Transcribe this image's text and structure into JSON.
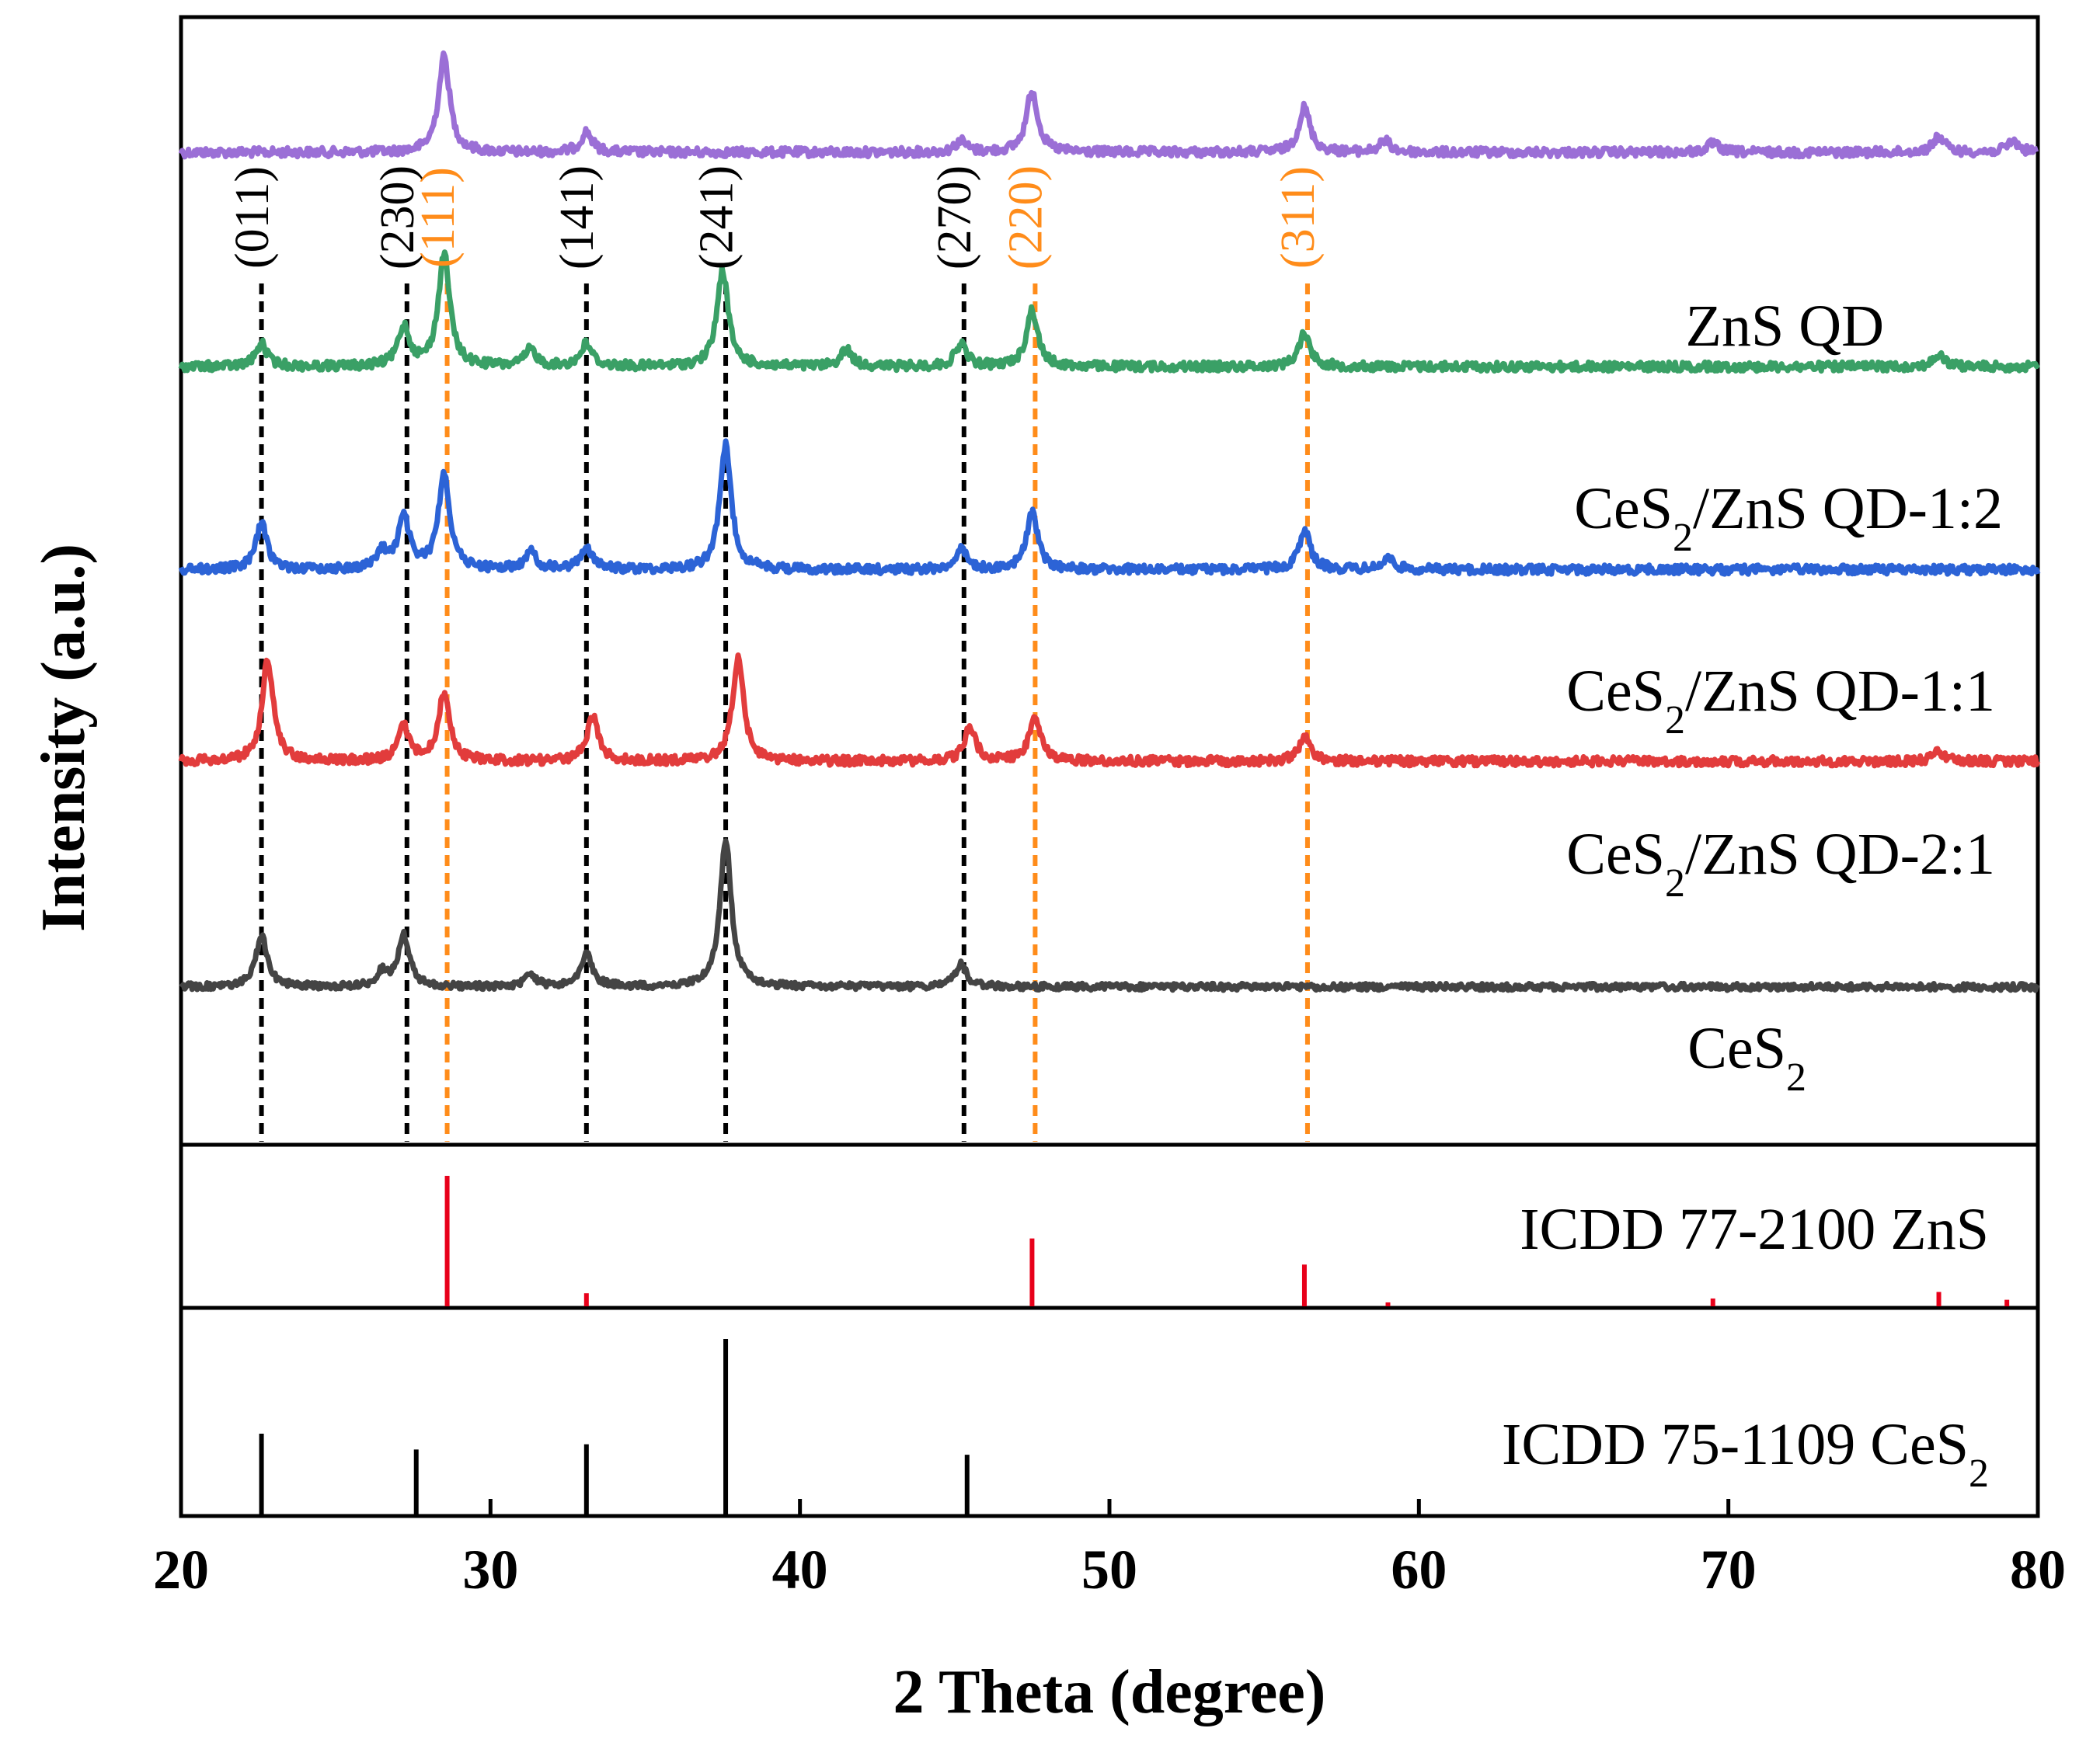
{
  "chart_data": {
    "type": "line",
    "title": "",
    "xlabel": "2 Theta (degree)",
    "ylabel": "Intensity (a.u.)",
    "xlim": [
      20,
      80
    ],
    "x_ticks": [
      "20",
      "30",
      "40",
      "50",
      "60",
      "70",
      "80"
    ],
    "grid": false,
    "series": [
      {
        "name": "ZnS QD",
        "name_main": "ZnS QD",
        "name_sub": "",
        "name_tail": "",
        "color": "#9b6fd6",
        "baseline_au": 0.12,
        "noise_au": 0.004,
        "peaks": [
          [
            28.5,
            0.085
          ],
          [
            33.1,
            0.018
          ],
          [
            45.2,
            0.01
          ],
          [
            47.5,
            0.055
          ],
          [
            56.3,
            0.04
          ],
          [
            58.9,
            0.01
          ],
          [
            69.5,
            0.008
          ],
          [
            76.8,
            0.014
          ],
          [
            79.2,
            0.01
          ]
        ]
      },
      {
        "name": "CeS2/ZnS QD-1:2",
        "name_main": "CeS",
        "name_sub": "2",
        "name_tail": "/ZnS QD-1:2",
        "color": "#3aa066",
        "baseline_au": 0.31,
        "noise_au": 0.004,
        "peaks": [
          [
            22.6,
            0.02
          ],
          [
            27.2,
            0.035
          ],
          [
            28.5,
            0.1
          ],
          [
            31.3,
            0.015
          ],
          [
            33.1,
            0.02
          ],
          [
            37.5,
            0.085
          ],
          [
            41.5,
            0.015
          ],
          [
            45.2,
            0.02
          ],
          [
            47.5,
            0.05
          ],
          [
            56.3,
            0.03
          ],
          [
            76.8,
            0.01
          ]
        ]
      },
      {
        "name": "CeS2/ZnS QD-1:1",
        "name_main": "CeS",
        "name_sub": "2",
        "name_tail": "/ZnS QD-1:1",
        "color": "#2c63d6",
        "baseline_au": 0.49,
        "noise_au": 0.004,
        "peaks": [
          [
            22.6,
            0.04
          ],
          [
            26.5,
            0.015
          ],
          [
            27.2,
            0.045
          ],
          [
            28.5,
            0.085
          ],
          [
            31.3,
            0.015
          ],
          [
            33.1,
            0.02
          ],
          [
            37.6,
            0.11
          ],
          [
            45.2,
            0.018
          ],
          [
            47.5,
            0.05
          ],
          [
            56.3,
            0.035
          ],
          [
            59.0,
            0.01
          ]
        ]
      },
      {
        "name": "CeS2/ZnS QD-2:1",
        "name_main": "CeS",
        "name_sub": "2",
        "name_tail": "/ZnS QD-2:1",
        "color": "#e23c3c",
        "baseline_au": 0.66,
        "noise_au": 0.004,
        "peaks": [
          [
            22.8,
            0.09
          ],
          [
            27.2,
            0.03
          ],
          [
            28.5,
            0.06
          ],
          [
            33.3,
            0.04
          ],
          [
            38.0,
            0.09
          ],
          [
            45.5,
            0.03
          ],
          [
            47.6,
            0.04
          ],
          [
            56.3,
            0.022
          ],
          [
            76.8,
            0.008
          ]
        ]
      },
      {
        "name": "CeS2",
        "name_main": "CeS",
        "name_sub": "2",
        "name_tail": "",
        "color": "#444444",
        "baseline_au": 0.86,
        "noise_au": 0.003,
        "peaks": [
          [
            22.6,
            0.045
          ],
          [
            26.5,
            0.012
          ],
          [
            27.2,
            0.045
          ],
          [
            31.3,
            0.01
          ],
          [
            33.1,
            0.03
          ],
          [
            37.6,
            0.13
          ],
          [
            45.2,
            0.02
          ]
        ]
      }
    ],
    "planes": [
      {
        "hkl": "(011)",
        "x": 22.6,
        "color": "#000000"
      },
      {
        "hkl": "(230)",
        "x": 27.3,
        "color": "#000000"
      },
      {
        "hkl": "(111)",
        "x": 28.6,
        "color": "#ff8c1a"
      },
      {
        "hkl": "(141)",
        "x": 33.1,
        "color": "#000000"
      },
      {
        "hkl": "(241)",
        "x": 37.6,
        "color": "#000000"
      },
      {
        "hkl": "(270)",
        "x": 45.3,
        "color": "#000000"
      },
      {
        "hkl": "(220)",
        "x": 47.6,
        "color": "#ff8c1a"
      },
      {
        "hkl": "(311)",
        "x": 56.4,
        "color": "#ff8c1a"
      }
    ],
    "references": [
      {
        "name": "ICDD 77-2100 ZnS",
        "name_main": "ICDD 77-2100 ZnS",
        "name_sub": "",
        "color": "#e8001a",
        "sticks": [
          [
            28.6,
            1.0
          ],
          [
            33.1,
            0.1
          ],
          [
            47.5,
            0.52
          ],
          [
            56.3,
            0.32
          ],
          [
            59.0,
            0.03
          ],
          [
            69.5,
            0.06
          ],
          [
            76.8,
            0.11
          ],
          [
            79.0,
            0.05
          ]
        ]
      },
      {
        "name": "ICDD 75-1109 CeS2",
        "name_main": "ICDD 75-1109 CeS",
        "name_sub": "2",
        "color": "#000000",
        "sticks": [
          [
            22.6,
            0.46
          ],
          [
            27.6,
            0.37
          ],
          [
            33.1,
            0.4
          ],
          [
            37.6,
            1.0
          ],
          [
            45.4,
            0.34
          ]
        ]
      }
    ]
  }
}
